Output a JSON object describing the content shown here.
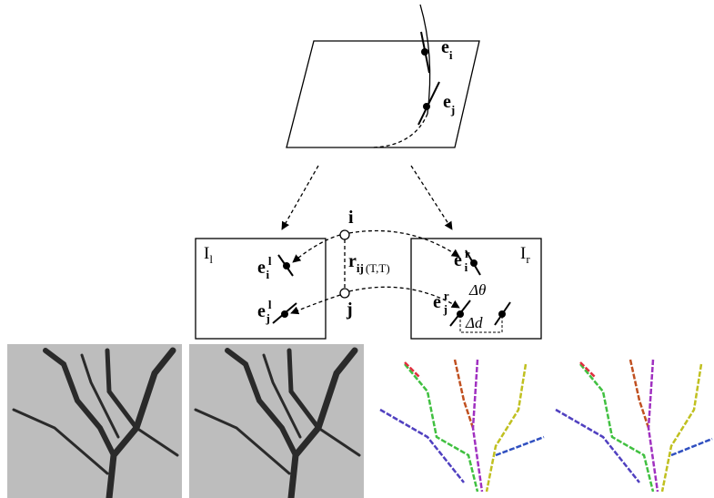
{
  "plane_labels": [
    {
      "base": "e",
      "sub": "i"
    },
    {
      "base": "e",
      "sub": "j"
    }
  ],
  "nodes": [
    "i",
    "j"
  ],
  "images": [
    {
      "base": "I",
      "sub": "l"
    },
    {
      "base": "I",
      "sub": "r"
    }
  ],
  "left_labels": [
    {
      "base": "e",
      "sup": "l",
      "sub": "i"
    },
    {
      "base": "e",
      "sup": "l",
      "sub": "j"
    }
  ],
  "right_labels": [
    {
      "base": "e",
      "sup": "r",
      "sub": "i"
    },
    {
      "base": "e",
      "sup": "r",
      "sub": "j"
    }
  ],
  "relation": {
    "base": "r",
    "sub": "ij",
    "suffix": "(T,T)"
  },
  "deltas": [
    "Δθ",
    "Δd"
  ]
}
